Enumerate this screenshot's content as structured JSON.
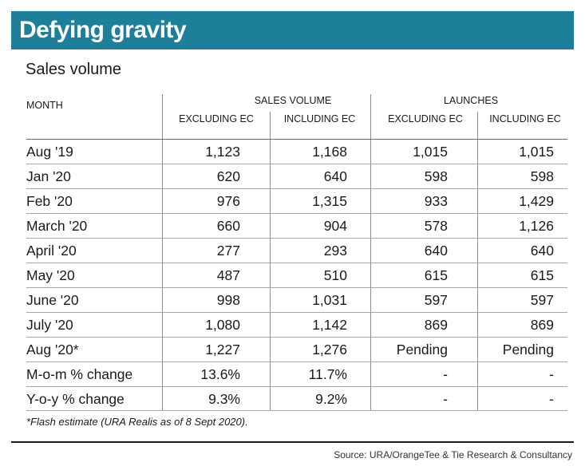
{
  "title": "Defying gravity",
  "subtitle": "Sales volume",
  "table": {
    "month_header": "MONTH",
    "group_headers": [
      "SALES VOLUME",
      "LAUNCHES"
    ],
    "sub_headers": [
      "EXCLUDING EC",
      "INCLUDING EC",
      "EXCLUDING EC",
      "INCLUDING EC"
    ],
    "rows": [
      {
        "month": "Aug '19",
        "values": [
          "1,123",
          "1,168",
          "1,015",
          "1,015"
        ]
      },
      {
        "month": "Jan '20",
        "values": [
          "620",
          "640",
          "598",
          "598"
        ]
      },
      {
        "month": "Feb '20",
        "values": [
          "976",
          "1,315",
          "933",
          "1,429"
        ]
      },
      {
        "month": "March '20",
        "values": [
          "660",
          "904",
          "578",
          "1,126"
        ]
      },
      {
        "month": "April '20",
        "values": [
          "277",
          "293",
          "640",
          "640"
        ]
      },
      {
        "month": "May '20",
        "values": [
          "487",
          "510",
          "615",
          "615"
        ]
      },
      {
        "month": "June '20",
        "values": [
          "998",
          "1,031",
          "597",
          "597"
        ]
      },
      {
        "month": "July '20",
        "values": [
          "1,080",
          "1,142",
          "869",
          "869"
        ]
      },
      {
        "month": "Aug '20*",
        "values": [
          "1,227",
          "1,276",
          "Pending",
          "Pending"
        ]
      },
      {
        "month": "M-o-m % change",
        "values": [
          "13.6%",
          "11.7%",
          "-",
          "-"
        ]
      },
      {
        "month": "Y-o-y % change",
        "values": [
          "9.3%",
          "9.2%",
          "-",
          "-"
        ]
      }
    ]
  },
  "footnote": "*Flash estimate (URA Realis as of 8 Sept 2020).",
  "source": "Source: URA/OrangeTee & Tie Research & Consultancy",
  "colors": {
    "title_bar": "#1d7f9a"
  }
}
